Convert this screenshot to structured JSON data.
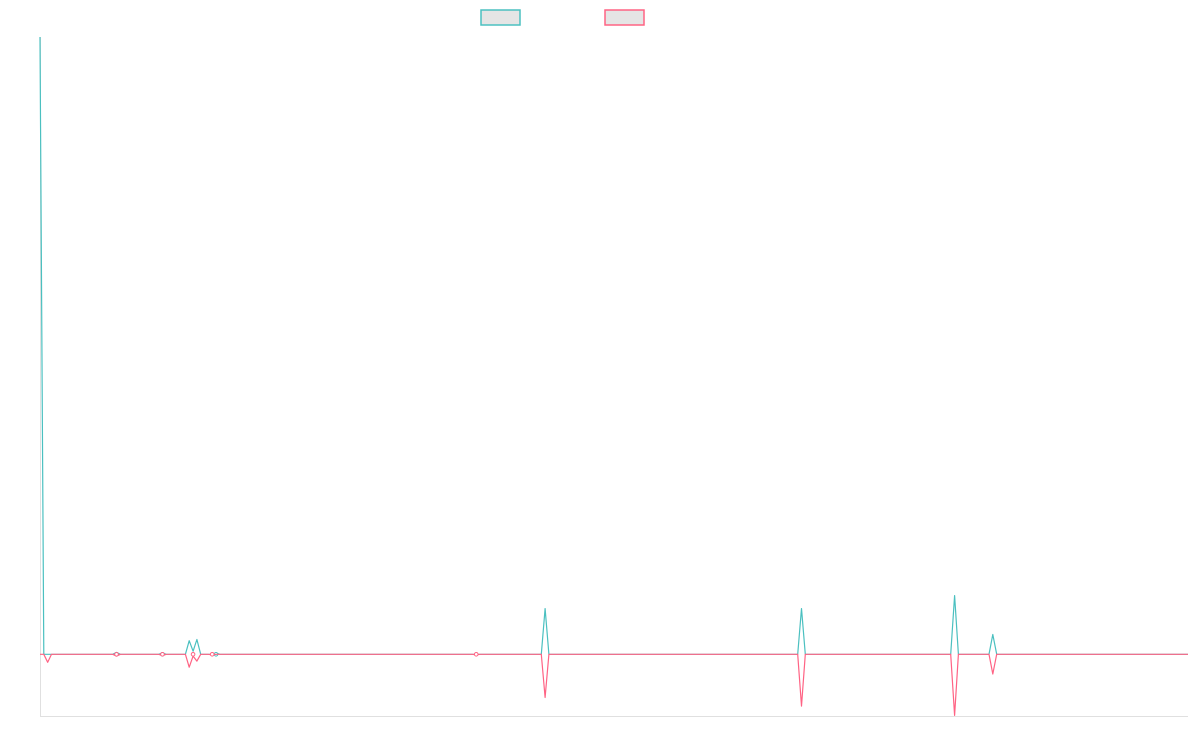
{
  "chart_data": {
    "type": "line",
    "title": "",
    "xlabel": "",
    "ylabel": "",
    "xlim": [
      0,
      300
    ],
    "ylim": [
      -10,
      100
    ],
    "grid": false,
    "legend": "top",
    "series": [
      {
        "color": "#4bc0c0",
        "points": [
          [
            0,
            100
          ],
          [
            1,
            0
          ],
          [
            19,
            0
          ],
          [
            20,
            0.3
          ],
          [
            21,
            0
          ],
          [
            31,
            0
          ],
          [
            32,
            0.2
          ],
          [
            33,
            0
          ],
          [
            38,
            0
          ],
          [
            39,
            2.2
          ],
          [
            40,
            0.5
          ],
          [
            41,
            2.4
          ],
          [
            42,
            0
          ],
          [
            45,
            0
          ],
          [
            46,
            0.2
          ],
          [
            47,
            0
          ],
          [
            131,
            0
          ],
          [
            132,
            7.4
          ],
          [
            133,
            0
          ],
          [
            198,
            0
          ],
          [
            199,
            7.4
          ],
          [
            200,
            0
          ],
          [
            238,
            0
          ],
          [
            239,
            9.5
          ],
          [
            240,
            0
          ],
          [
            248,
            0
          ],
          [
            249,
            3.2
          ],
          [
            250,
            0
          ],
          [
            300,
            0
          ]
        ]
      },
      {
        "color": "#ff6384",
        "points": [
          [
            0,
            0
          ],
          [
            1,
            0
          ],
          [
            2,
            -1.3
          ],
          [
            3,
            0
          ],
          [
            19,
            0
          ],
          [
            20,
            -0.3
          ],
          [
            21,
            0
          ],
          [
            31,
            0
          ],
          [
            32,
            -0.2
          ],
          [
            33,
            0
          ],
          [
            38,
            0
          ],
          [
            39,
            -2.1
          ],
          [
            40,
            -0.3
          ],
          [
            41,
            -1.1
          ],
          [
            42,
            0
          ],
          [
            44,
            0
          ],
          [
            45,
            -0.1
          ],
          [
            46,
            0
          ],
          [
            113,
            0
          ],
          [
            114,
            -0.1
          ],
          [
            115,
            0
          ],
          [
            131,
            0
          ],
          [
            132,
            -7
          ],
          [
            133,
            0
          ],
          [
            198,
            0
          ],
          [
            199,
            -8.4
          ],
          [
            200,
            0
          ],
          [
            238,
            0
          ],
          [
            239,
            -9.9
          ],
          [
            240,
            0
          ],
          [
            248,
            0
          ],
          [
            249,
            -3.2
          ],
          [
            250,
            0
          ],
          [
            300,
            0
          ]
        ]
      }
    ],
    "legend_box_fill": "#e5e5e5"
  }
}
